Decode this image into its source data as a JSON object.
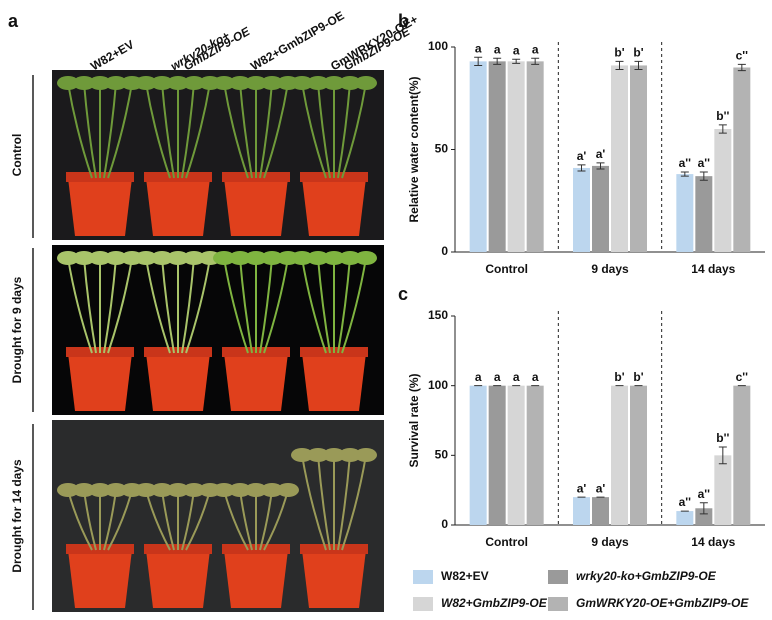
{
  "panel_labels": [
    "a",
    "b",
    "c"
  ],
  "photo_panel": {
    "columns": [
      [
        "W82+EV"
      ],
      [
        "wrky20-ko+",
        "GmbZIP9-OE"
      ],
      [
        "W82+GmbZIP9-OE"
      ],
      [
        "GmWRKY20-OE+",
        "GmbZIP9-OE"
      ]
    ],
    "rows": [
      "Control",
      "Drought for 9 days",
      "Drought for 14 days"
    ]
  },
  "chart_data": [
    {
      "type": "bar",
      "y_label": "Relative water content(%)",
      "categories": [
        "Control",
        "9 days",
        "14 days"
      ],
      "ylim": [
        0,
        100
      ],
      "yticks": [
        0,
        50,
        100
      ],
      "series": [
        {
          "name": "W82+EV",
          "color": "#bcd6ee",
          "values": [
            93,
            41,
            38
          ],
          "errors": [
            2,
            1.5,
            1
          ],
          "sig_labels": [
            "a",
            "a'",
            "a''"
          ]
        },
        {
          "name": "wrky20-ko+GmbZIP9-OE",
          "color": "#9a9a9a",
          "values": [
            93,
            42,
            37
          ],
          "errors": [
            1.5,
            1.5,
            2
          ],
          "sig_labels": [
            "a",
            "a'",
            "a''"
          ]
        },
        {
          "name": "W82+GmbZIP9-OE",
          "color": "#d6d6d6",
          "values": [
            93,
            91,
            60
          ],
          "errors": [
            1,
            2,
            2
          ],
          "sig_labels": [
            "a",
            "b'",
            "b''"
          ]
        },
        {
          "name": "GmWRKY20-OE+GmbZIP9-OE",
          "color": "#b3b3b3",
          "values": [
            93,
            91,
            90
          ],
          "errors": [
            1.5,
            2,
            1.5
          ],
          "sig_labels": [
            "a",
            "b'",
            "c''"
          ]
        }
      ]
    },
    {
      "type": "bar",
      "y_label": "Survival rate (%)",
      "categories": [
        "Control",
        "9 days",
        "14 days"
      ],
      "ylim": [
        0,
        150
      ],
      "yticks": [
        0,
        50,
        100,
        150
      ],
      "series": [
        {
          "name": "W82+EV",
          "color": "#bcd6ee",
          "values": [
            100,
            20,
            10
          ],
          "errors": [
            0,
            0,
            0
          ],
          "sig_labels": [
            "a",
            "a'",
            "a''"
          ]
        },
        {
          "name": "wrky20-ko+GmbZIP9-OE",
          "color": "#9a9a9a",
          "values": [
            100,
            20,
            12
          ],
          "errors": [
            0,
            0,
            4
          ],
          "sig_labels": [
            "a",
            "a'",
            "a''"
          ]
        },
        {
          "name": "W82+GmbZIP9-OE",
          "color": "#d6d6d6",
          "values": [
            100,
            100,
            50
          ],
          "errors": [
            0,
            0,
            6
          ],
          "sig_labels": [
            "a",
            "b'",
            "b''"
          ]
        },
        {
          "name": "GmWRKY20-OE+GmbZIP9-OE",
          "color": "#b3b3b3",
          "values": [
            100,
            100,
            100
          ],
          "errors": [
            0,
            0,
            0
          ],
          "sig_labels": [
            "a",
            "b'",
            "c''"
          ]
        }
      ]
    }
  ]
}
